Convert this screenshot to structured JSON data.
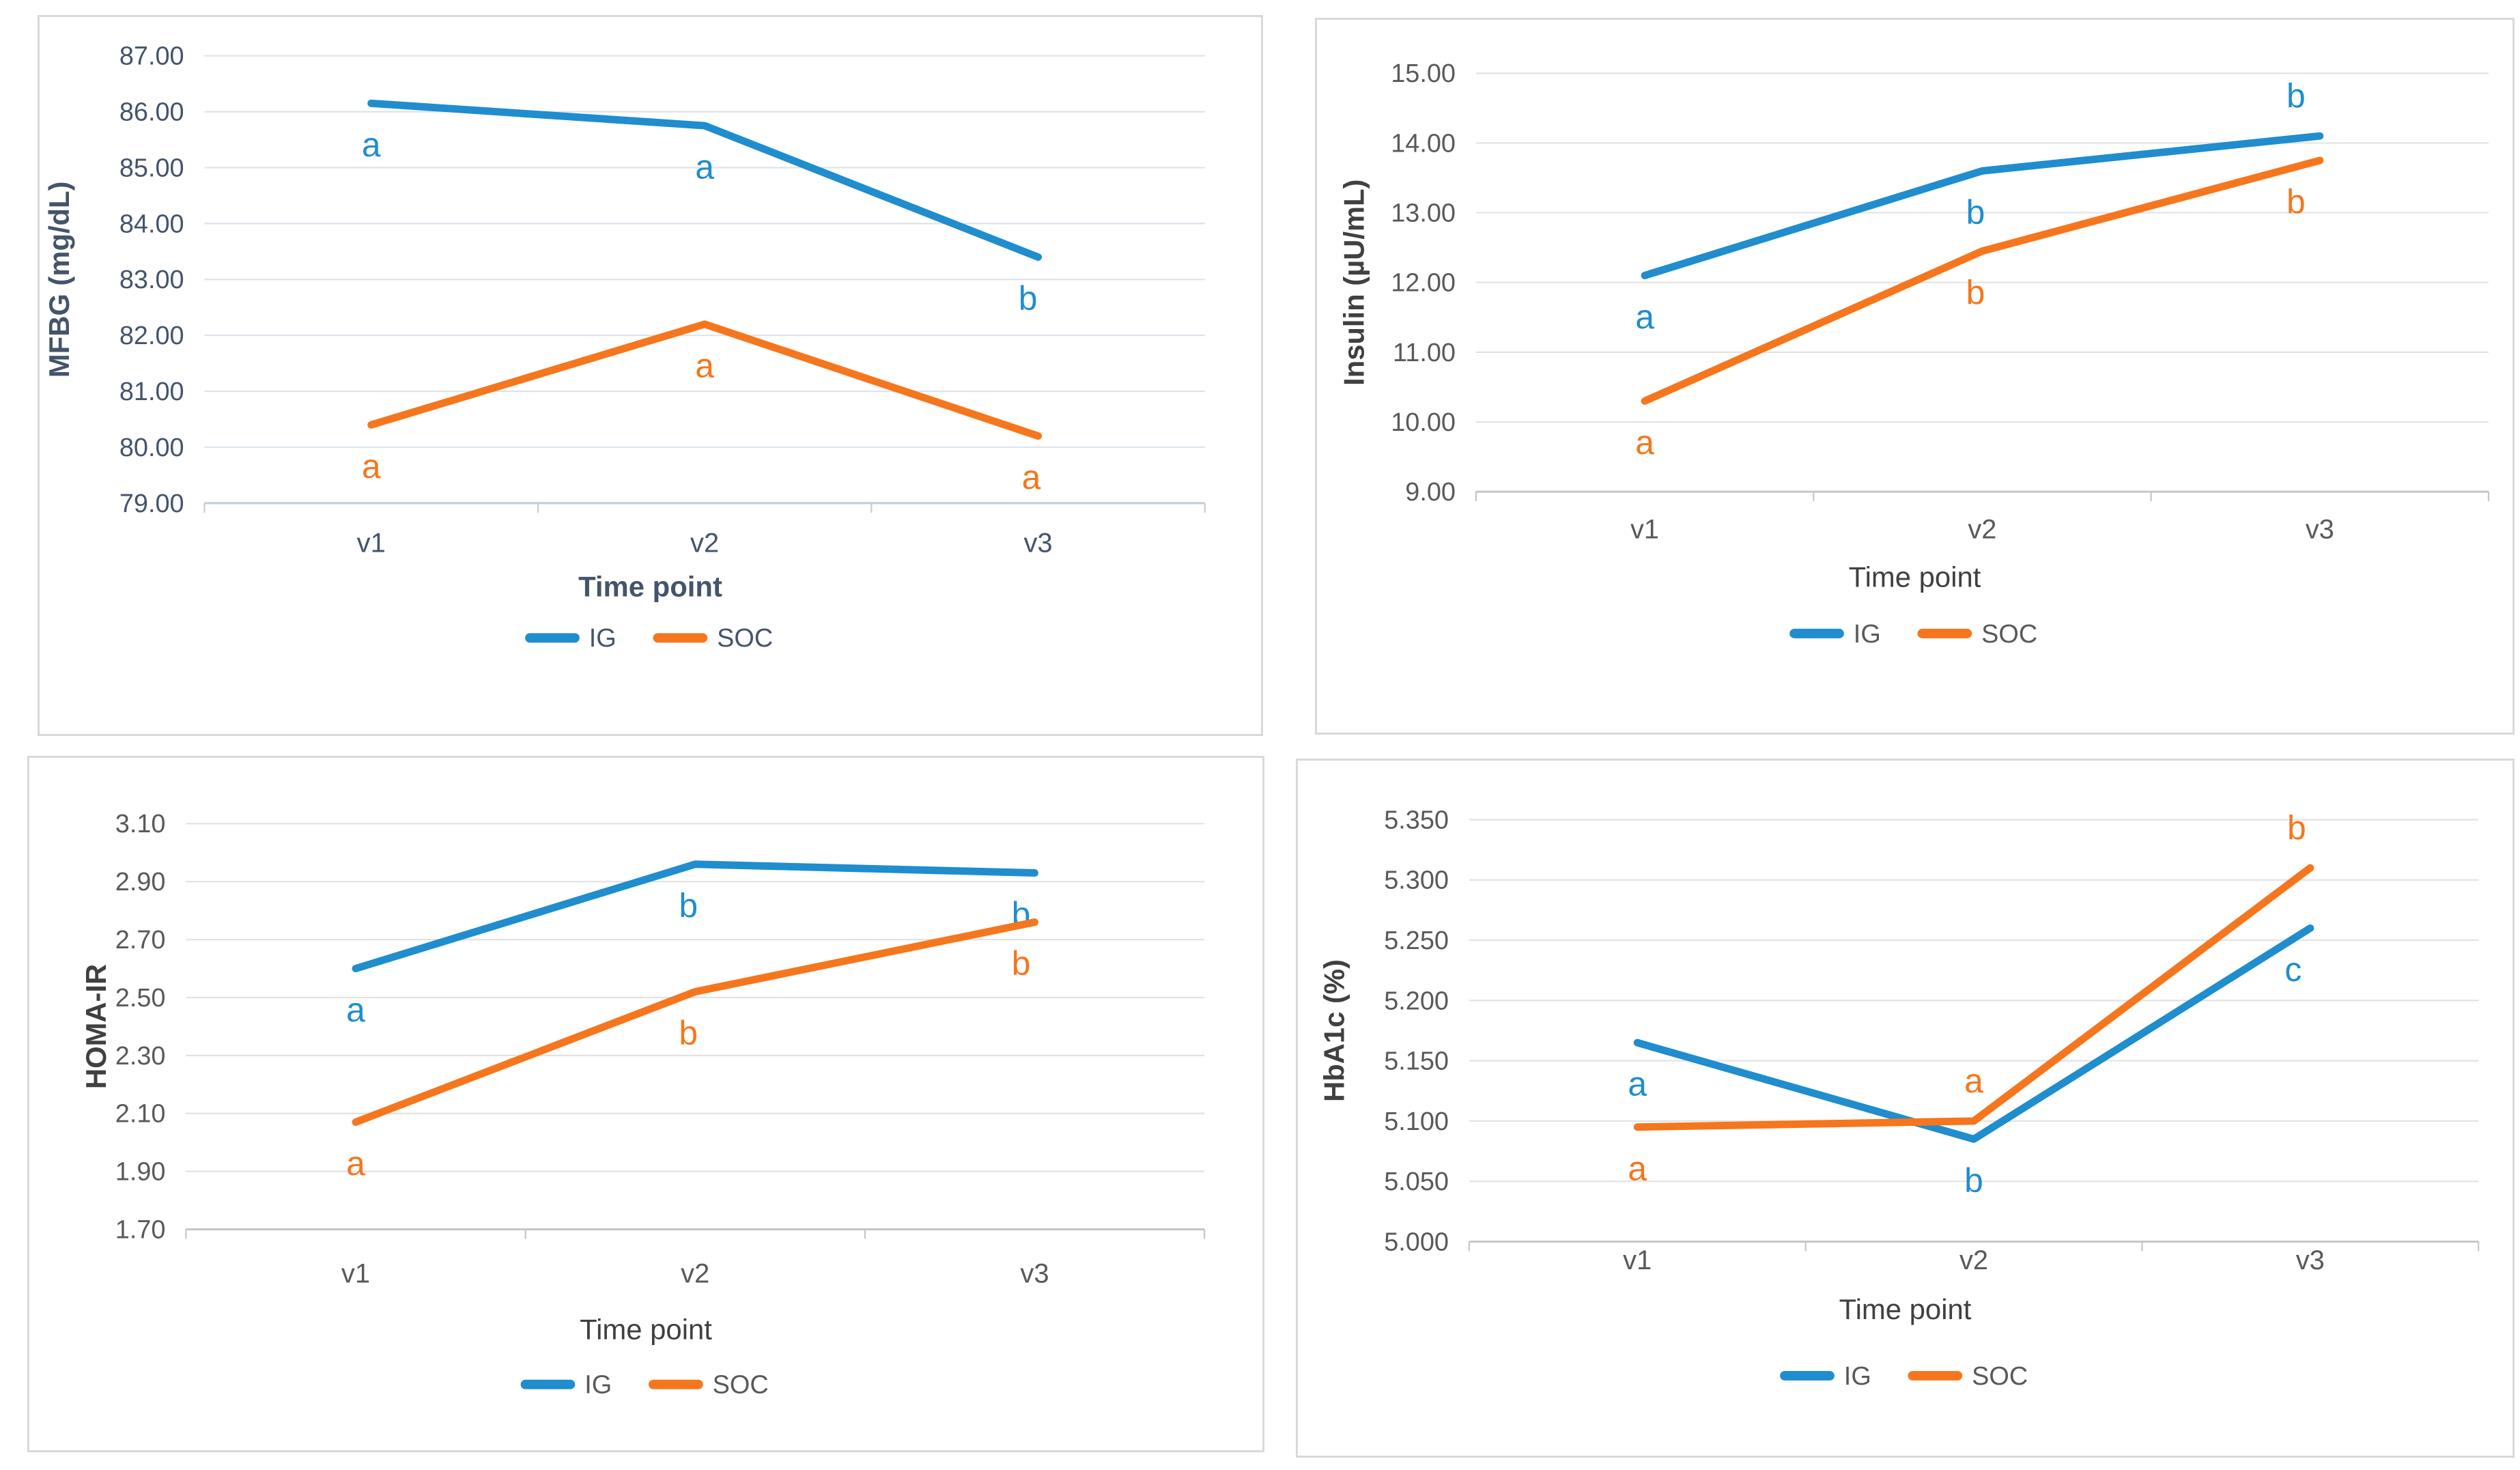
{
  "page": {
    "background": "#ffffff"
  },
  "colors": {
    "ig": "#1f8dce",
    "soc": "#f6761d",
    "navy_text": "#44546A",
    "gray_tick": "#595959",
    "gray_title": "#404040",
    "grid_navy": "#dce3ec",
    "grid_gray": "#e3e3e3",
    "axis_navy": "#c3ccd8",
    "axis_gray": "#c6c6c6",
    "panel_border": "#d9d9d9"
  },
  "chart_data": [
    {
      "type": "line",
      "name": "mfbg",
      "ylabel": "MFBG (mg/dL)",
      "xlabel": "Time point",
      "categories": [
        "v1",
        "v2",
        "v3"
      ],
      "ytick_labels": [
        "87.00",
        "86.00",
        "85.00",
        "84.00",
        "83.00",
        "82.00",
        "81.00",
        "80.00",
        "79.00"
      ],
      "ylim": [
        79,
        87
      ],
      "grid": true,
      "legend_position": "bottom",
      "text_theme": "navy",
      "series": [
        {
          "name": "IG",
          "color_role": "ig",
          "values": [
            86.15,
            85.75,
            83.4
          ],
          "point_labels": [
            "a",
            "a",
            "b"
          ],
          "point_label_pos": [
            "below",
            "below",
            "below"
          ],
          "point_label_dx": [
            0,
            0,
            -15
          ]
        },
        {
          "name": "SOC",
          "color_role": "soc",
          "values": [
            80.4,
            82.2,
            80.2
          ],
          "point_labels": [
            "a",
            "a",
            "a"
          ],
          "point_label_pos": [
            "below",
            "below",
            "below"
          ],
          "point_label_dx": [
            0,
            0,
            -10
          ]
        }
      ]
    },
    {
      "type": "line",
      "name": "insulin",
      "ylabel": "Insulin (µU/mL)",
      "xlabel": "Time point",
      "categories": [
        "v1",
        "v2",
        "v3"
      ],
      "ytick_labels": [
        "15.00",
        "14.00",
        "13.00",
        "12.00",
        "11.00",
        "10.00",
        "9.00"
      ],
      "ylim": [
        9,
        15
      ],
      "grid": true,
      "legend_position": "bottom",
      "text_theme": "gray",
      "series": [
        {
          "name": "IG",
          "color_role": "ig",
          "values": [
            12.1,
            13.6,
            14.1
          ],
          "point_labels": [
            "a",
            "b",
            "b"
          ],
          "point_label_pos": [
            "below",
            "below",
            "above"
          ],
          "point_label_dx": [
            0,
            -10,
            -35
          ]
        },
        {
          "name": "SOC",
          "color_role": "soc",
          "values": [
            10.3,
            12.45,
            13.75
          ],
          "point_labels": [
            "a",
            "b",
            "b"
          ],
          "point_label_pos": [
            "below",
            "below",
            "below"
          ],
          "point_label_dx": [
            0,
            -10,
            -35
          ]
        }
      ]
    },
    {
      "type": "line",
      "name": "homa-ir",
      "ylabel": "HOMA-IR",
      "xlabel": "Time point",
      "categories": [
        "v1",
        "v2",
        "v3"
      ],
      "ytick_labels": [
        "3.10",
        "2.90",
        "2.70",
        "2.50",
        "2.30",
        "2.10",
        "1.90",
        "1.70"
      ],
      "ylim": [
        1.7,
        3.1
      ],
      "grid": true,
      "legend_position": "bottom",
      "text_theme": "gray",
      "series": [
        {
          "name": "IG",
          "color_role": "ig",
          "values": [
            2.6,
            2.96,
            2.93
          ],
          "point_labels": [
            "a",
            "b",
            "b"
          ],
          "point_label_pos": [
            "below",
            "below",
            "below"
          ],
          "point_label_dx": [
            0,
            -10,
            -20
          ]
        },
        {
          "name": "SOC",
          "color_role": "soc",
          "values": [
            2.07,
            2.52,
            2.76
          ],
          "point_labels": [
            "a",
            "b",
            "b"
          ],
          "point_label_pos": [
            "below",
            "below",
            "below"
          ],
          "point_label_dx": [
            0,
            -10,
            -20
          ]
        }
      ]
    },
    {
      "type": "line",
      "name": "hba1c",
      "ylabel": "HbA1c (%)",
      "xlabel": "Time point",
      "categories": [
        "v1",
        "v2",
        "v3"
      ],
      "ytick_labels": [
        "5.350",
        "5.300",
        "5.250",
        "5.200",
        "5.150",
        "5.100",
        "5.050",
        "5.000"
      ],
      "ylim": [
        5.0,
        5.35
      ],
      "grid": true,
      "legend_position": "bottom",
      "text_theme": "gray",
      "series": [
        {
          "name": "IG",
          "color_role": "ig",
          "values": [
            5.165,
            5.085,
            5.26
          ],
          "point_labels": [
            "a",
            "b",
            "c"
          ],
          "point_label_pos": [
            "below",
            "below",
            "below"
          ],
          "point_label_dx": [
            0,
            0,
            -25
          ]
        },
        {
          "name": "SOC",
          "color_role": "soc",
          "values": [
            5.095,
            5.1,
            5.31
          ],
          "point_labels": [
            "a",
            "a",
            "b"
          ],
          "point_label_pos": [
            "below",
            "above",
            "above"
          ],
          "point_label_dx": [
            0,
            0,
            -20
          ]
        }
      ]
    }
  ],
  "legend": {
    "ig_label": "IG",
    "soc_label": "SOC"
  }
}
